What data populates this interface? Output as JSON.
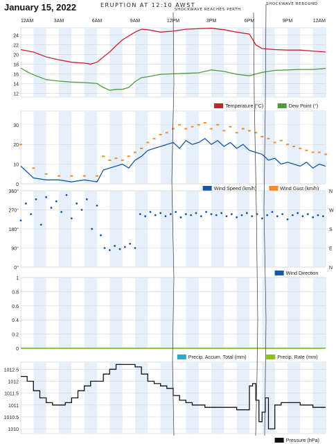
{
  "page_title": "January 15, 2022",
  "annotations": {
    "eruption": "ERUPTION AT 12:10 AWST",
    "shockwave_perth": "SHOCKWAVE REACHES PERTH",
    "shockwave_rebound": "SHOCKWAVE REBOUND"
  },
  "time_axis": [
    "12AM",
    "3AM",
    "6AM",
    "9AM",
    "12PM",
    "3PM",
    "6PM",
    "9PM",
    "12AM"
  ],
  "colors": {
    "temperature": "#cc1f2b",
    "dew_point": "#4f9a3a",
    "wind_speed": "#1656a8",
    "wind_gust": "#f28a2e",
    "wind_direction": "#1656a8",
    "precip_total": "#2aa7c9",
    "precip_rate": "#8cbf1f",
    "pressure": "#111111",
    "shade": "#e6f0fa"
  },
  "chart_data": [
    {
      "type": "line",
      "x_unit": "hour of day",
      "xlim": [
        0,
        24
      ],
      "ylim": [
        11.2,
        25.5
      ],
      "yticks": [
        "12",
        "14",
        "16",
        "18",
        "20",
        "22",
        "24"
      ],
      "series": [
        {
          "name": "Temperature (°C)",
          "x": [
            0,
            1,
            2,
            3,
            4,
            5,
            5.5,
            6,
            6.5,
            7,
            7.5,
            8,
            8.5,
            9,
            9.5,
            10,
            11,
            12,
            13,
            14,
            15,
            16,
            17,
            18,
            18.5,
            19,
            20,
            21,
            22,
            23,
            24
          ],
          "values": [
            21.0,
            20.5,
            19.5,
            18.9,
            18.4,
            18.2,
            18.0,
            18.4,
            19.5,
            20.5,
            21.8,
            23.0,
            23.8,
            24.6,
            25.2,
            25.1,
            24.6,
            24.8,
            25.2,
            25.3,
            25.4,
            25.1,
            24.6,
            24.2,
            22.0,
            21.2,
            21.0,
            20.9,
            20.9,
            20.7,
            20.5
          ]
        },
        {
          "name": "Dew Point (°)",
          "x": [
            0,
            0.5,
            1,
            2,
            3,
            4,
            5,
            6,
            6.5,
            7,
            7.5,
            8,
            8.5,
            9,
            9.5,
            10,
            11,
            12,
            13,
            14,
            15,
            16,
            17,
            18,
            19,
            20,
            21,
            22,
            23,
            24
          ],
          "values": [
            17.2,
            16.4,
            15.8,
            14.8,
            14.5,
            14.3,
            14.2,
            14.0,
            13.2,
            12.6,
            12.8,
            12.8,
            13.2,
            14.4,
            15.2,
            15.4,
            15.9,
            16.0,
            16.1,
            16.2,
            16.8,
            16.5,
            15.9,
            15.6,
            16.3,
            16.7,
            16.8,
            16.9,
            16.9,
            17.1
          ]
        }
      ]
    },
    {
      "type": "line",
      "x_unit": "hour of day",
      "xlim": [
        0,
        24
      ],
      "ylim": [
        0,
        37
      ],
      "yticks": [
        "0",
        "10",
        "20",
        "30"
      ],
      "series": [
        {
          "name": "Wind Speed (km/h)",
          "x": [
            0,
            0.5,
            1,
            2,
            3,
            4,
            5,
            6,
            6.5,
            7,
            7.5,
            8,
            8.5,
            9,
            9.5,
            10,
            10.5,
            11,
            11.5,
            12,
            12.5,
            13,
            13.5,
            14,
            14.5,
            15,
            15.5,
            16,
            16.5,
            17,
            17.5,
            18,
            18.5,
            19,
            19.5,
            20,
            20.5,
            21,
            21.5,
            22,
            22.5,
            23,
            23.5,
            24
          ],
          "values": [
            9,
            6,
            3,
            2,
            2,
            1,
            2,
            1,
            7,
            8,
            9,
            10,
            8,
            12,
            14,
            17,
            18,
            19,
            20,
            21,
            18,
            22,
            20,
            21,
            23,
            20,
            22,
            19,
            21,
            18,
            20,
            17,
            16,
            15,
            12,
            13,
            10,
            11,
            10,
            9,
            11,
            8,
            10,
            9
          ]
        },
        {
          "name": "Wind Gust (km/h)",
          "x": [
            0,
            1,
            2,
            3,
            4,
            5,
            6,
            6.5,
            7,
            7.5,
            8,
            8.5,
            9,
            9.5,
            10,
            10.5,
            11,
            11.5,
            12,
            12.5,
            13,
            13.5,
            14,
            14.5,
            15,
            15.5,
            16,
            16.5,
            17,
            17.5,
            18,
            18.5,
            19,
            19.5,
            20,
            20.5,
            21,
            21.5,
            22,
            22.5,
            23,
            23.5,
            24
          ],
          "values": [
            20,
            8,
            5,
            4,
            4,
            4,
            4,
            14,
            12,
            13,
            12,
            14,
            16,
            18,
            21,
            23,
            25,
            26,
            28,
            30,
            28,
            29,
            30,
            31,
            28,
            30,
            27,
            29,
            26,
            28,
            27,
            26,
            24,
            23,
            21,
            22,
            20,
            19,
            18,
            17,
            16,
            16,
            15
          ]
        }
      ]
    },
    {
      "type": "scatter",
      "x_unit": "hour of day",
      "xlim": [
        0,
        24
      ],
      "ylim": [
        0,
        360
      ],
      "yticks_left": [
        "0°",
        "90°",
        "180°",
        "270°",
        "360°"
      ],
      "yticks_right": [
        "N",
        "E",
        "S",
        "W",
        "N"
      ],
      "series": [
        {
          "name": "Wind Direction",
          "x": [
            0,
            0.4,
            0.8,
            1.2,
            1.6,
            2,
            2.4,
            2.8,
            3.2,
            3.6,
            4,
            4.4,
            4.8,
            5.2,
            5.6,
            6,
            6.3,
            6.6,
            7,
            7.4,
            7.8,
            8.2,
            8.6,
            9,
            9.4,
            9.8,
            10.2,
            10.6,
            11,
            11.4,
            11.8,
            12.2,
            12.6,
            13,
            13.4,
            13.8,
            14.2,
            14.6,
            15,
            15.4,
            15.8,
            16.2,
            16.6,
            17,
            17.4,
            17.8,
            18.2,
            18.6,
            19,
            19.4,
            19.8,
            20.2,
            20.6,
            21,
            21.4,
            21.8,
            22.2,
            22.6,
            23,
            23.4,
            23.8
          ],
          "values": [
            220,
            300,
            250,
            320,
            200,
            330,
            280,
            310,
            260,
            340,
            230,
            300,
            270,
            320,
            180,
            290,
            150,
            90,
            80,
            100,
            85,
            95,
            110,
            90,
            250,
            240,
            260,
            245,
            255,
            240,
            250,
            260,
            235,
            250,
            245,
            255,
            240,
            260,
            250,
            245,
            255,
            240,
            250,
            235,
            245,
            255,
            240,
            250,
            230,
            245,
            260,
            240,
            250,
            225,
            245,
            255,
            240,
            250,
            235,
            245,
            240
          ]
        }
      ]
    },
    {
      "type": "line",
      "x_unit": "hour of day",
      "xlim": [
        0,
        24
      ],
      "ylim": [
        0,
        1
      ],
      "yticks": [
        "0",
        "0.2",
        "0.4",
        "0.6",
        "0.8",
        "1"
      ],
      "series": [
        {
          "name": "Precip. Accum. Total (mm)",
          "x": [
            0,
            24
          ],
          "values": [
            0,
            0
          ]
        },
        {
          "name": "Precip. Rate (mm)",
          "x": [
            0,
            24
          ],
          "values": [
            0,
            0
          ]
        }
      ]
    },
    {
      "type": "line",
      "x_unit": "hour of day",
      "xlim": [
        0,
        24
      ],
      "ylim": [
        1009.8,
        1012.8
      ],
      "yticks": [
        "1010",
        "1010.5",
        "1011",
        "1011.5",
        "1012",
        "1012.5"
      ],
      "series": [
        {
          "name": "Pressure (hPa)",
          "x": [
            0,
            0.5,
            1,
            1.5,
            2,
            2.5,
            3,
            3.5,
            4,
            4.5,
            5,
            5.5,
            6,
            6.5,
            7,
            7.5,
            8,
            8.5,
            9,
            9.5,
            10,
            10.5,
            11,
            11.5,
            12,
            12.5,
            13,
            13.5,
            14,
            14.5,
            15,
            15.5,
            16,
            16.5,
            17,
            17.5,
            18,
            18.25,
            18.5,
            18.75,
            19,
            19.25,
            19.5,
            20,
            20.5,
            21,
            21.5,
            22,
            22.5,
            23,
            23.5,
            24
          ],
          "values": [
            1012.2,
            1012.0,
            1011.6,
            1011.3,
            1011.1,
            1011.0,
            1011.0,
            1011.1,
            1011.3,
            1011.6,
            1011.8,
            1012.0,
            1012.0,
            1012.3,
            1012.5,
            1012.7,
            1012.7,
            1012.7,
            1012.6,
            1012.3,
            1012.0,
            1011.9,
            1011.8,
            1011.7,
            1011.4,
            1011.2,
            1011.1,
            1011.0,
            1011.0,
            1010.9,
            1010.9,
            1010.9,
            1010.9,
            1010.9,
            1010.8,
            1010.8,
            1011.8,
            1011.9,
            1011.2,
            1010.3,
            1010.7,
            1011.3,
            1010.0,
            1011.0,
            1011.1,
            1011.1,
            1011.1,
            1011.0,
            1011.0,
            1010.9,
            1010.9,
            1010.9
          ]
        }
      ]
    }
  ]
}
